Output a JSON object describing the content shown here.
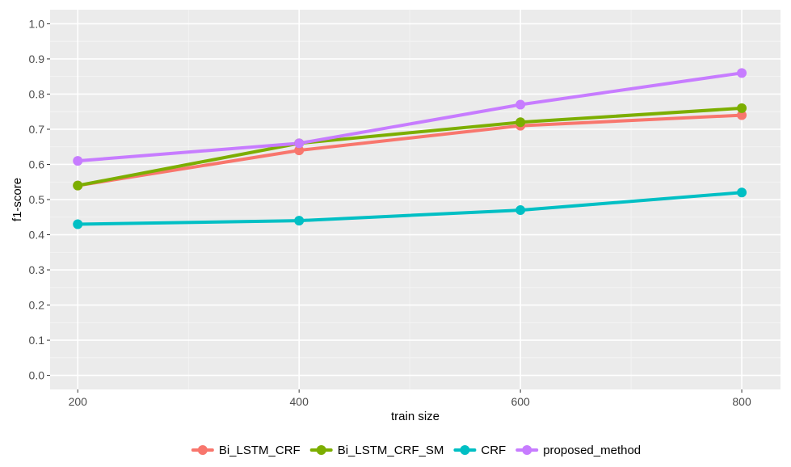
{
  "chart_data": {
    "type": "line",
    "title": "",
    "xlabel": "train size",
    "ylabel": "f1-score",
    "x": [
      200,
      400,
      600,
      800
    ],
    "x_ticks": [
      "200",
      "400",
      "600",
      "800"
    ],
    "y_ticks": [
      "0.0",
      "0.1",
      "0.2",
      "0.3",
      "0.4",
      "0.5",
      "0.6",
      "0.7",
      "0.8",
      "0.9",
      "1.0"
    ],
    "xlim": [
      175,
      835
    ],
    "ylim": [
      -0.04,
      1.04
    ],
    "grid": true,
    "legend_position": "bottom",
    "series": [
      {
        "name": "Bi_LSTM_CRF",
        "color": "#F8766D",
        "values": [
          0.54,
          0.64,
          0.71,
          0.74
        ]
      },
      {
        "name": "Bi_LSTM_CRF_SM",
        "color": "#7CAE00",
        "values": [
          0.54,
          0.66,
          0.72,
          0.76
        ]
      },
      {
        "name": "CRF",
        "color": "#00BFC4",
        "values": [
          0.43,
          0.44,
          0.47,
          0.52
        ]
      },
      {
        "name": "proposed_method",
        "color": "#C77CFF",
        "values": [
          0.61,
          0.66,
          0.77,
          0.86
        ]
      }
    ]
  }
}
